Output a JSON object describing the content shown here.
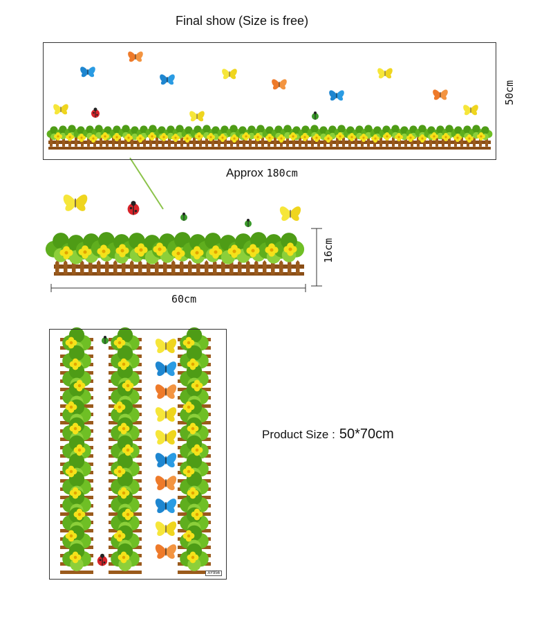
{
  "final_show": {
    "title": "Final show (Size is free)"
  },
  "approx": {
    "prefix": "Approx",
    "value": "180cm"
  },
  "dimensions": {
    "height_large": "50cm",
    "height_small": "16cm",
    "width_small": "60cm"
  },
  "product": {
    "label": "Product Size :",
    "size": "50*70cm",
    "sheet_code": "AY956"
  },
  "colors": {
    "leaf_green": "#5fae1e",
    "leaf_dark": "#2f7d12",
    "flower_yellow": "#f5e21a",
    "fence_brown": "#9a5a1c",
    "butterfly_blue": "#1e86d0",
    "butterfly_orange": "#ee7a2a",
    "butterfly_yellow": "#f6e63a",
    "ladybug_red": "#d8242a",
    "pointer_line": "#8bc34a"
  }
}
